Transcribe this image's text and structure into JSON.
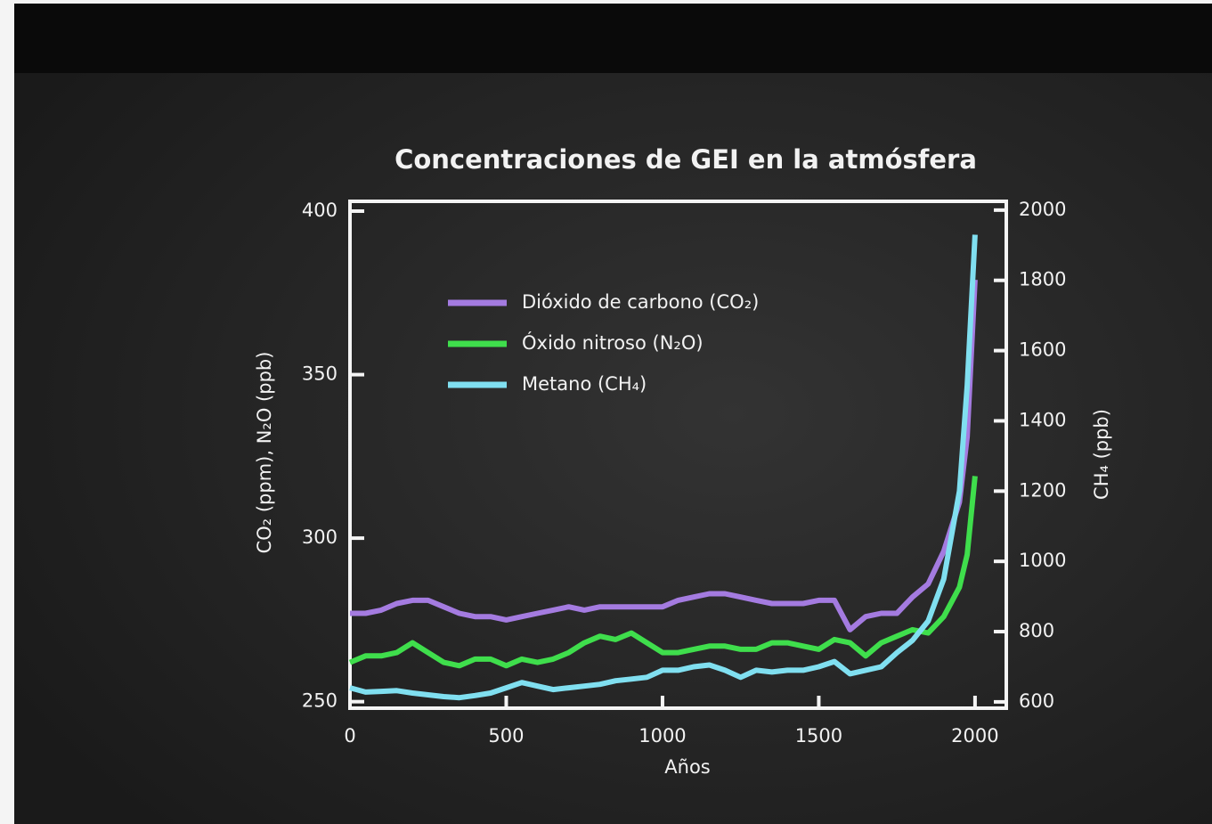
{
  "chart_data": {
    "type": "line",
    "title": "Concentraciones de GEI en la atmósfera",
    "xlabel": "Años",
    "ylabel": "CO₂ (ppm), N₂O (ppb)",
    "y2label": "CH₄ (ppb)",
    "x": [
      0,
      50,
      100,
      150,
      200,
      250,
      300,
      350,
      400,
      450,
      500,
      550,
      600,
      650,
      700,
      750,
      800,
      850,
      900,
      950,
      1000,
      1050,
      1100,
      1150,
      1200,
      1250,
      1300,
      1350,
      1400,
      1450,
      1500,
      1550,
      1600,
      1650,
      1700,
      1750,
      1800,
      1850,
      1900,
      1950,
      1975,
      2000
    ],
    "series": [
      {
        "name": "Dióxido de carbono (CO₂)",
        "color": "#a47be0",
        "values": [
          277,
          277,
          278,
          280,
          281,
          281,
          279,
          277,
          276,
          276,
          275,
          276,
          277,
          278,
          279,
          278,
          279,
          279,
          279,
          279,
          279,
          281,
          282,
          283,
          283,
          282,
          281,
          280,
          280,
          280,
          281,
          281,
          272,
          276,
          277,
          277,
          282,
          286,
          296,
          311,
          331,
          379
        ]
      },
      {
        "name": "Óxido nitroso (N₂O)",
        "color": "#3fde4c",
        "values": [
          262,
          264,
          264,
          265,
          268,
          265,
          262,
          261,
          263,
          263,
          261,
          263,
          262,
          263,
          265,
          268,
          270,
          269,
          271,
          268,
          265,
          265,
          266,
          267,
          267,
          266,
          266,
          268,
          268,
          267,
          266,
          269,
          268,
          264,
          268,
          270,
          272,
          271,
          276,
          285,
          295,
          319
        ]
      },
      {
        "name": "Metano (CH₄)",
        "color": "#80dff0",
        "axis": "y2",
        "values": [
          640,
          628,
          630,
          632,
          625,
          620,
          615,
          612,
          618,
          625,
          640,
          655,
          645,
          635,
          640,
          645,
          650,
          660,
          665,
          670,
          690,
          690,
          700,
          705,
          690,
          670,
          690,
          685,
          690,
          690,
          700,
          715,
          680,
          690,
          700,
          740,
          775,
          830,
          950,
          1200,
          1500,
          1930
        ]
      }
    ],
    "xlim": [
      0,
      2100
    ],
    "xticks": [
      0,
      500,
      1000,
      1500,
      2000
    ],
    "ylim": [
      248,
      403
    ],
    "yticks": [
      250,
      300,
      350,
      400
    ],
    "y2lim": [
      582,
      2025
    ],
    "y2ticks": [
      600,
      800,
      1000,
      1200,
      1400,
      1600,
      1800,
      2000
    ],
    "legend": "upper left",
    "grid": false
  }
}
